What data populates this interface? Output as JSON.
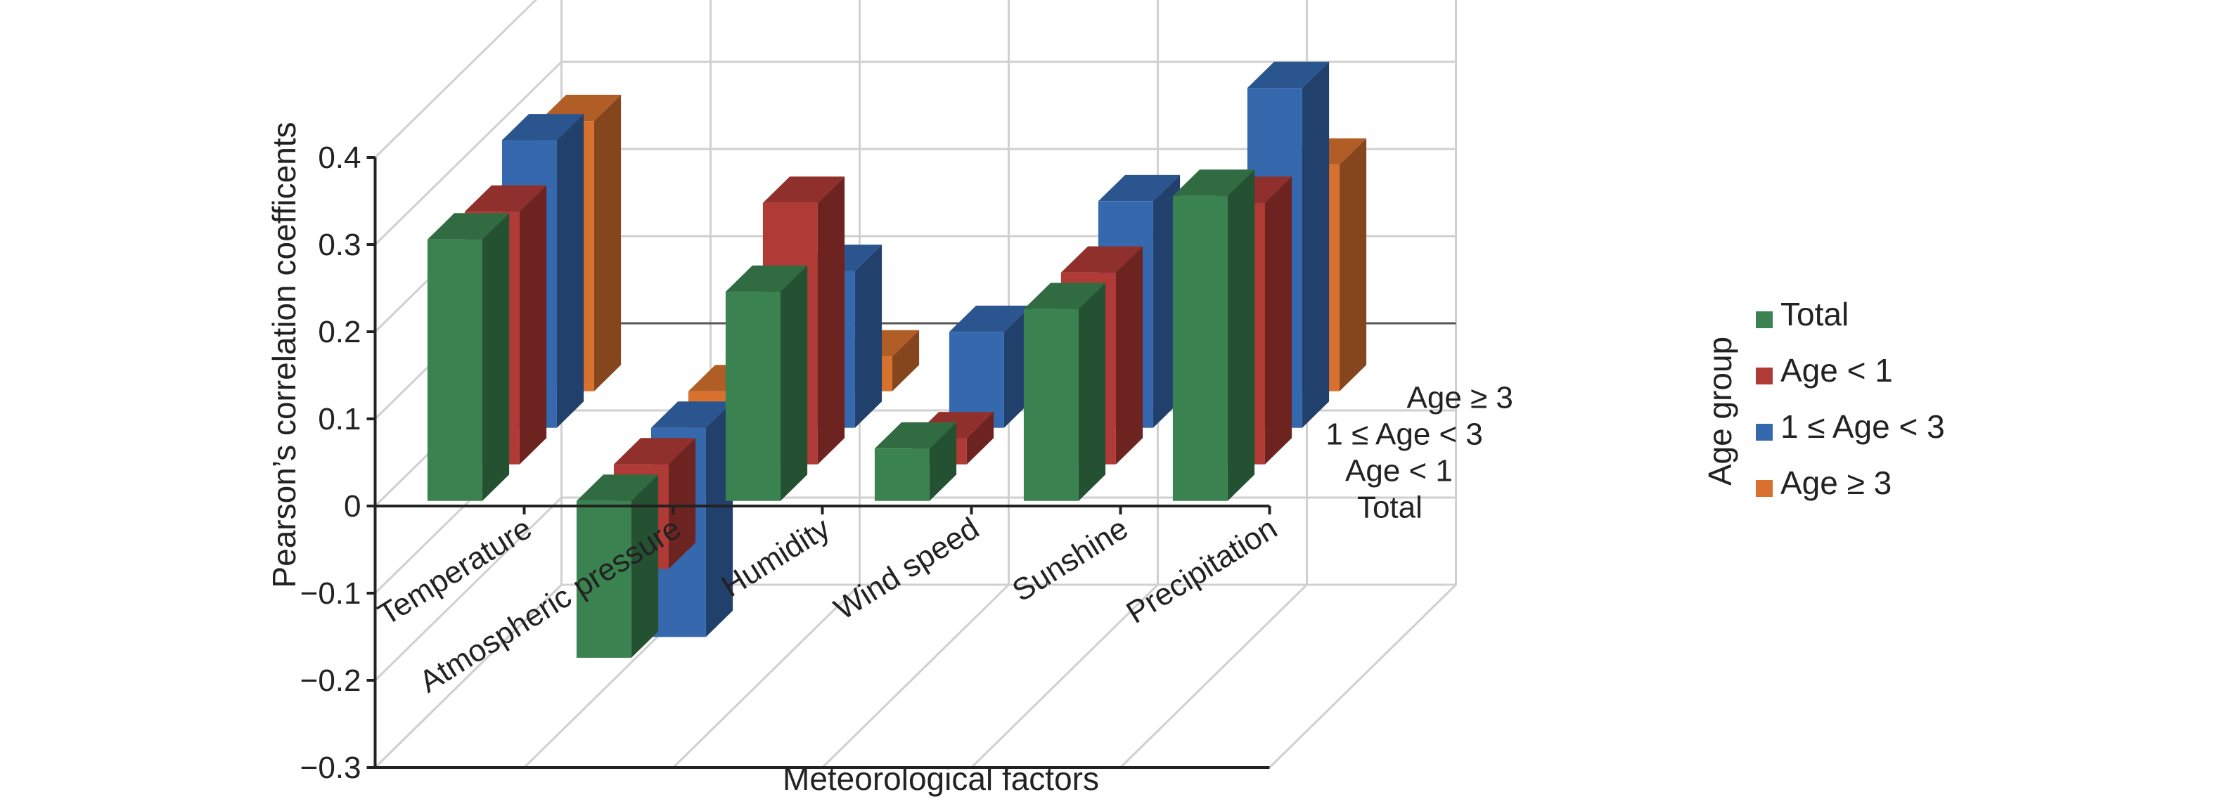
{
  "chart_data": {
    "type": "bar",
    "variant": "3d-column",
    "title": "",
    "xlabel": "Meteorological factors",
    "ylabel": "Pearson’s correlation coefficents",
    "ylim": [
      -0.3,
      0.4
    ],
    "yticks": [
      "0.4",
      "0.3",
      "0.2",
      "0.1",
      "0",
      "−0.1",
      "−0.2",
      "−0.3"
    ],
    "categories": [
      "Temperature",
      "Atmospheric pressure",
      "Humidity",
      "Wind speed",
      "Sunshine",
      "Precipitation"
    ],
    "depth_labels": [
      "Total",
      "Age < 1",
      "1 ≤ Age < 3",
      "Age ≥ 3"
    ],
    "legend_title": "Age group",
    "legend_position": "right",
    "grid": true,
    "series": [
      {
        "name": "Total",
        "color": "#3a8350",
        "values": [
          0.3,
          -0.18,
          0.24,
          0.06,
          0.22,
          0.35
        ]
      },
      {
        "name": "Age < 1",
        "color": "#b03a36",
        "values": [
          0.29,
          -0.12,
          0.3,
          0.03,
          0.22,
          0.3
        ]
      },
      {
        "name": "1 ≤ Age < 3",
        "color": "#3568ad",
        "values": [
          0.33,
          -0.24,
          0.18,
          0.11,
          0.26,
          0.39
        ]
      },
      {
        "name": "Age ≥ 3",
        "color": "#d8712e",
        "values": [
          0.31,
          -0.12,
          0.04,
          null,
          null,
          0.26
        ]
      }
    ]
  }
}
